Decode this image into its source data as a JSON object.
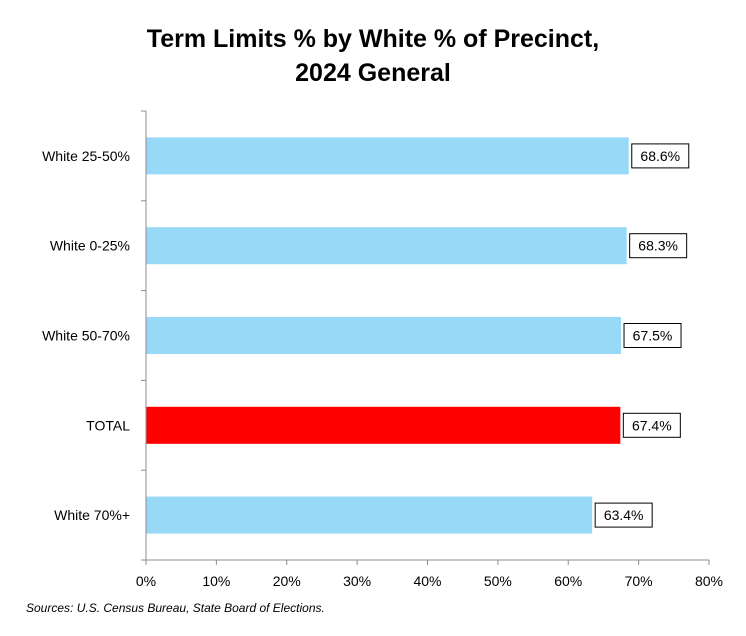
{
  "title_line1": "Term Limits % by White % of Precinct,",
  "title_line2": "2024 General",
  "source": "Sources: U.S. Census Bureau, State Board of Elections.",
  "chart_data": {
    "type": "bar",
    "orientation": "horizontal",
    "categories": [
      "White 25-50%",
      "White 0-25%",
      "White 50-70%",
      "TOTAL",
      "White 70%+"
    ],
    "values": [
      68.6,
      68.3,
      67.5,
      67.4,
      63.4
    ],
    "data_labels": [
      "68.6%",
      "68.3%",
      "67.5%",
      "67.4%",
      "63.4%"
    ],
    "bar_colors": [
      "#97d9f7",
      "#97d9f7",
      "#97d9f7",
      "#ff0000",
      "#97d9f7"
    ],
    "xlim": [
      0,
      80
    ],
    "x_ticks": [
      0,
      10,
      20,
      30,
      40,
      50,
      60,
      70,
      80
    ],
    "x_tick_labels": [
      "0%",
      "10%",
      "20%",
      "30%",
      "40%",
      "50%",
      "60%",
      "70%",
      "80%"
    ],
    "grid": false,
    "legend": "none"
  }
}
